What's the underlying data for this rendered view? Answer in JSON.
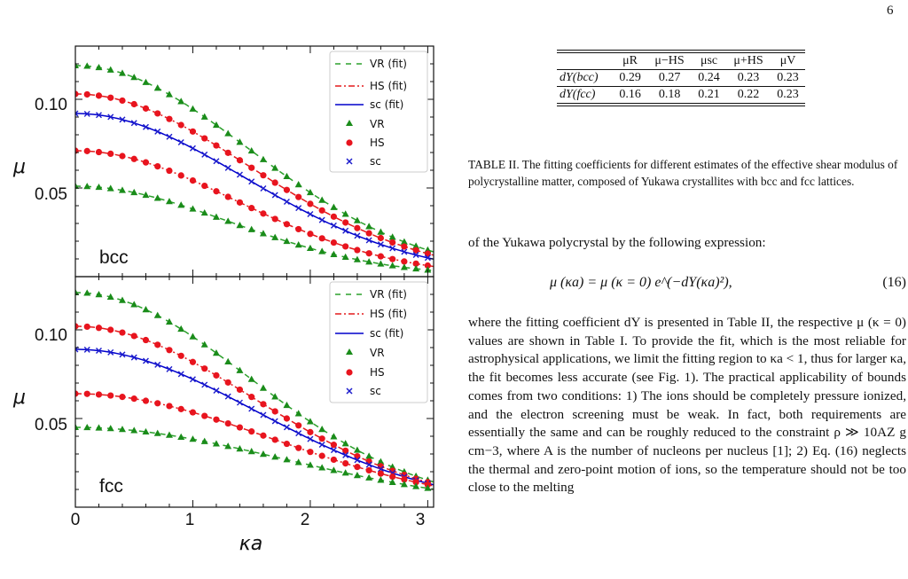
{
  "page_number": "6",
  "figure": {
    "y_label": "μ",
    "x_label": "κa",
    "x_ticks": [
      "0",
      "1",
      "2",
      "3"
    ],
    "y_ticks": [
      "0.05",
      "0.10"
    ],
    "legend": [
      "VR (fit)",
      "HS (fit)",
      "sc (fit)",
      "VR",
      "HS",
      "sc"
    ],
    "panels": [
      "bcc",
      "fcc"
    ]
  },
  "chart_data": [
    {
      "type": "line",
      "panel_label": "bcc",
      "xlabel": "κa",
      "ylabel": "μ",
      "xlim": [
        0,
        3.05
      ],
      "ylim": [
        0,
        0.13
      ],
      "series": [
        {
          "name": "VR (fit)",
          "style": "dashed",
          "color": "#2ca02c",
          "mu0": 0.119,
          "dY": 0.23
        },
        {
          "name": "HS (fit)",
          "style": "dash-dot",
          "color": "#e41a1c",
          "mu0": 0.103,
          "dY": 0.23
        },
        {
          "name": "HS (fit)",
          "style": "dash-dot",
          "color": "#e41a1c",
          "mu0": 0.071,
          "dY": 0.27
        },
        {
          "name": "sc (fit)",
          "style": "solid",
          "color": "#0000cc",
          "mu0": 0.092,
          "dY": 0.24
        },
        {
          "name": "VR (fit)",
          "style": "dashed",
          "color": "#2ca02c",
          "mu0": 0.051,
          "dY": 0.29
        },
        {
          "name": "VR",
          "marker": "triangle",
          "color": "#1a8c1a",
          "mu0": 0.119,
          "dY": 0.23
        },
        {
          "name": "HS",
          "marker": "circle",
          "color": "#e8141e",
          "mu0": 0.103,
          "dY": 0.23
        },
        {
          "name": "HS",
          "marker": "circle",
          "color": "#e8141e",
          "mu0": 0.071,
          "dY": 0.27
        },
        {
          "name": "sc",
          "marker": "x",
          "color": "#1c1ccc",
          "mu0": 0.092,
          "dY": 0.24
        },
        {
          "name": "VR",
          "marker": "triangle",
          "color": "#1a8c1a",
          "mu0": 0.051,
          "dY": 0.29
        }
      ]
    },
    {
      "type": "line",
      "panel_label": "fcc",
      "xlabel": "κa",
      "ylabel": "μ",
      "xlim": [
        0,
        3.05
      ],
      "ylim": [
        0,
        0.13
      ],
      "series": [
        {
          "name": "VR (fit)",
          "style": "dashed",
          "color": "#2ca02c",
          "mu0": 0.121,
          "dY": 0.23
        },
        {
          "name": "HS (fit)",
          "style": "dash-dot",
          "color": "#e41a1c",
          "mu0": 0.102,
          "dY": 0.22
        },
        {
          "name": "sc (fit)",
          "style": "solid",
          "color": "#0000cc",
          "mu0": 0.089,
          "dY": 0.21
        },
        {
          "name": "HS (fit)",
          "style": "dash-dot",
          "color": "#e41a1c",
          "mu0": 0.064,
          "dY": 0.18
        },
        {
          "name": "VR (fit)",
          "style": "dashed",
          "color": "#2ca02c",
          "mu0": 0.045,
          "dY": 0.16
        },
        {
          "name": "VR",
          "marker": "triangle",
          "color": "#1a8c1a",
          "mu0": 0.121,
          "dY": 0.23
        },
        {
          "name": "HS",
          "marker": "circle",
          "color": "#e8141e",
          "mu0": 0.102,
          "dY": 0.22
        },
        {
          "name": "sc",
          "marker": "x",
          "color": "#1c1ccc",
          "mu0": 0.089,
          "dY": 0.21
        },
        {
          "name": "HS",
          "marker": "circle",
          "color": "#e8141e",
          "mu0": 0.064,
          "dY": 0.18
        },
        {
          "name": "VR",
          "marker": "triangle",
          "color": "#1a8c1a",
          "mu0": 0.045,
          "dY": 0.16
        }
      ]
    }
  ],
  "table": {
    "columns": [
      "",
      "μR",
      "μ−HS",
      "μsc",
      "μ+HS",
      "μV"
    ],
    "rows": [
      {
        "label": "dY(bcc)",
        "values": [
          "0.29",
          "0.27",
          "0.24",
          "0.23",
          "0.23"
        ]
      },
      {
        "label": "dY(fcc)",
        "values": [
          "0.16",
          "0.18",
          "0.21",
          "0.22",
          "0.23"
        ]
      }
    ]
  },
  "caption": "TABLE II. The fitting coefficients for different estimates of the effective shear modulus of polycrystalline matter, composed of Yukawa crystallites with bcc and fcc lattices.",
  "paragraph1": "of the Yukawa polycrystal by the following expression:",
  "equation": {
    "text": "μ (κa) = μ (κ = 0) e^(−dY(κa)²),",
    "number": "(16)"
  },
  "paragraph2": "where the fitting coefficient dY is presented in Table II, the respective μ (κ = 0) values are shown in Table I. To provide the fit, which is the most reliable for astrophysical applications, we limit the fitting region to κa < 1, thus for larger κa, the fit becomes less accurate (see Fig. 1). The practical applicability of bounds comes from two conditions: 1) The ions should be completely pressure ionized, and the electron screening must be weak. In fact, both requirements are essentially the same and can be roughly reduced to the constraint ρ ≫ 10AZ g cm−3, where A is the number of nucleons per nucleus [1]; 2) Eq. (16) neglects the thermal and zero-point motion of ions, so the temperature should not be too close to the melting"
}
